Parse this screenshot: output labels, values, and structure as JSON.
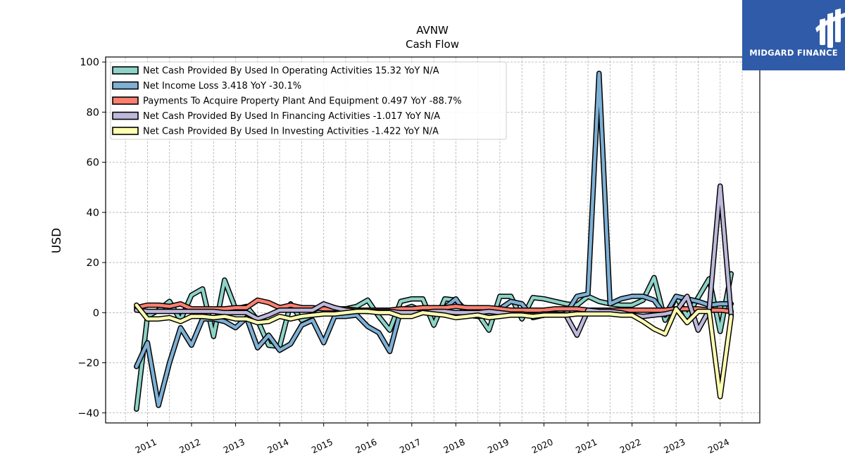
{
  "brand": {
    "name": "MIDGARD FINANCE",
    "logo_icon": "stylized-M-bars-icon",
    "color": "#2f5ba8"
  },
  "chart_data": {
    "type": "line",
    "title": "AVNW",
    "subtitle": "Cash Flow",
    "xlabel": "",
    "ylabel": "USD",
    "ylim": [
      -44,
      102
    ],
    "xlim": [
      2010.05,
      2024.9
    ],
    "yticks": [
      -40,
      -20,
      0,
      20,
      40,
      60,
      80,
      100
    ],
    "xticks": [
      "2011",
      "2012",
      "2013",
      "2014",
      "2015",
      "2016",
      "2017",
      "2018",
      "2019",
      "2020",
      "2021",
      "2022",
      "2023",
      "2024"
    ],
    "grid": true,
    "legend_position": "top-left",
    "series": [
      {
        "name": "Net Cash Provided By Used In Operating Activities  15.32 YoY N/A",
        "color": "#8dd3c7",
        "x": [
          2010.75,
          2011.0,
          2011.25,
          2011.5,
          2011.75,
          2012.0,
          2012.25,
          2012.5,
          2012.75,
          2013.0,
          2013.25,
          2013.5,
          2013.75,
          2014.0,
          2014.25,
          2014.5,
          2014.75,
          2015.0,
          2015.25,
          2015.5,
          2015.75,
          2016.0,
          2016.25,
          2016.5,
          2016.75,
          2017.0,
          2017.25,
          2017.5,
          2017.75,
          2018.0,
          2018.25,
          2018.5,
          2018.75,
          2019.0,
          2019.25,
          2019.5,
          2019.75,
          2020.0,
          2020.25,
          2020.5,
          2020.75,
          2021.0,
          2021.25,
          2021.5,
          2021.75,
          2022.0,
          2022.25,
          2022.5,
          2022.75,
          2023.0,
          2023.25,
          2023.5,
          2023.75,
          2024.0,
          2024.25
        ],
        "values": [
          -38.5,
          -1.5,
          1.0,
          4.5,
          -3.0,
          7.0,
          9.5,
          -9.5,
          13.0,
          1.5,
          2.5,
          -3.0,
          -13.0,
          -13.5,
          3.5,
          -3.0,
          -1.0,
          1.0,
          -1.0,
          1.5,
          2.5,
          5.0,
          -1.5,
          -7.0,
          4.5,
          5.5,
          5.5,
          -5.0,
          5.5,
          5.0,
          0.5,
          -0.5,
          -7.0,
          6.5,
          6.5,
          -2.5,
          6.0,
          5.5,
          4.5,
          3.5,
          3.0,
          6.5,
          4.5,
          3.5,
          3.0,
          3.0,
          5.0,
          14.0,
          -3.0,
          6.5,
          -1.5,
          6.0,
          13.5,
          -7.5,
          15.5
        ]
      },
      {
        "name": "Net Income Loss  3.418 YoY -30.1%",
        "color": "#7eb0d5",
        "x": [
          2010.75,
          2011.0,
          2011.25,
          2011.5,
          2011.75,
          2012.0,
          2012.25,
          2012.5,
          2012.75,
          2013.0,
          2013.25,
          2013.5,
          2013.75,
          2014.0,
          2014.25,
          2014.5,
          2014.75,
          2015.0,
          2015.25,
          2015.5,
          2015.75,
          2016.0,
          2016.25,
          2016.5,
          2016.75,
          2017.0,
          2017.25,
          2017.5,
          2017.75,
          2018.0,
          2018.25,
          2018.5,
          2018.75,
          2019.0,
          2019.25,
          2019.5,
          2019.75,
          2020.0,
          2020.25,
          2020.5,
          2020.75,
          2021.0,
          2021.25,
          2021.5,
          2021.75,
          2022.0,
          2022.25,
          2022.5,
          2022.75,
          2023.0,
          2023.25,
          2023.5,
          2023.75,
          2024.0,
          2024.25
        ],
        "values": [
          -21.5,
          -12.0,
          -37.0,
          -20.0,
          -6.0,
          -13.0,
          -2.5,
          -2.5,
          -3.5,
          -6.0,
          -2.0,
          -14.0,
          -9.0,
          -15.0,
          -12.5,
          -5.0,
          -3.0,
          -12.0,
          -1.5,
          -1.5,
          -1.0,
          -5.5,
          -8.0,
          -15.5,
          1.0,
          2.5,
          0.5,
          0.0,
          2.0,
          5.5,
          -1.0,
          -1.5,
          -1.0,
          1.5,
          4.5,
          3.5,
          -2.0,
          -1.0,
          -1.0,
          -0.5,
          6.5,
          7.5,
          95.5,
          3.5,
          5.5,
          6.5,
          6.5,
          5.0,
          -1.0,
          6.5,
          5.5,
          4.5,
          3.0,
          3.5,
          3.5
        ]
      },
      {
        "name": "Payments To Acquire Property Plant And Equipment  0.497 YoY -88.7%",
        "color": "#fd7f6f",
        "x": [
          2010.75,
          2011.0,
          2011.25,
          2011.5,
          2011.75,
          2012.0,
          2012.25,
          2012.5,
          2012.75,
          2013.0,
          2013.25,
          2013.5,
          2013.75,
          2014.0,
          2014.25,
          2014.5,
          2014.75,
          2015.0,
          2015.25,
          2015.5,
          2015.75,
          2016.0,
          2016.25,
          2016.5,
          2016.75,
          2017.0,
          2017.25,
          2017.5,
          2017.75,
          2018.0,
          2018.25,
          2018.5,
          2018.75,
          2019.0,
          2019.25,
          2019.5,
          2019.75,
          2020.0,
          2020.25,
          2020.5,
          2020.75,
          2021.0,
          2021.25,
          2021.5,
          2021.75,
          2022.0,
          2022.25,
          2022.5,
          2022.75,
          2023.0,
          2023.25,
          2023.5,
          2023.75,
          2024.0,
          2024.25
        ],
        "values": [
          2.0,
          3.0,
          3.0,
          2.5,
          3.5,
          1.5,
          1.5,
          1.5,
          1.5,
          2.0,
          2.0,
          5.0,
          4.0,
          2.0,
          3.0,
          2.0,
          2.0,
          1.5,
          1.5,
          1.5,
          1.0,
          1.0,
          1.0,
          1.0,
          1.5,
          1.5,
          2.0,
          2.0,
          2.0,
          2.5,
          2.0,
          2.0,
          2.0,
          1.5,
          1.0,
          1.0,
          1.0,
          1.0,
          1.5,
          1.5,
          1.5,
          1.0,
          1.0,
          1.0,
          1.0,
          1.0,
          1.0,
          1.0,
          1.0,
          1.5,
          1.5,
          1.5,
          1.0,
          1.0,
          0.5
        ]
      },
      {
        "name": "Net Cash Provided By Used In Financing Activities  -1.017 YoY N/A",
        "color": "#beb9db",
        "x": [
          2010.75,
          2011.0,
          2011.25,
          2011.5,
          2011.75,
          2012.0,
          2012.25,
          2012.5,
          2012.75,
          2013.0,
          2013.25,
          2013.5,
          2013.75,
          2014.0,
          2014.25,
          2014.5,
          2014.75,
          2015.0,
          2015.25,
          2015.5,
          2015.75,
          2016.0,
          2016.25,
          2016.5,
          2016.75,
          2017.0,
          2017.25,
          2017.5,
          2017.75,
          2018.0,
          2018.25,
          2018.5,
          2018.75,
          2019.0,
          2019.25,
          2019.5,
          2019.75,
          2020.0,
          2020.25,
          2020.5,
          2020.75,
          2021.0,
          2021.25,
          2021.5,
          2021.75,
          2022.0,
          2022.25,
          2022.5,
          2022.75,
          2023.0,
          2023.25,
          2023.5,
          2023.75,
          2024.0,
          2024.25
        ],
        "values": [
          1.0,
          0.5,
          0.5,
          0.5,
          0.5,
          0.5,
          0.5,
          0.5,
          0.0,
          0.0,
          0.0,
          -2.5,
          -1.0,
          1.0,
          1.0,
          1.0,
          1.0,
          3.5,
          2.0,
          1.0,
          0.5,
          0.5,
          0.5,
          0.5,
          0.0,
          0.0,
          0.0,
          0.5,
          0.5,
          0.0,
          0.0,
          0.0,
          0.5,
          0.0,
          -0.5,
          -0.5,
          -1.0,
          -0.5,
          -0.5,
          -1.0,
          -9.0,
          1.0,
          0.5,
          0.5,
          0.0,
          -1.0,
          -1.5,
          -1.0,
          -0.5,
          0.5,
          6.5,
          -7.0,
          1.0,
          50.5,
          -1.0
        ]
      },
      {
        "name": "Net Cash Provided By Used In Investing Activities  -1.422 YoY N/A",
        "color": "#ffffb3",
        "x": [
          2010.75,
          2011.0,
          2011.25,
          2011.5,
          2011.75,
          2012.0,
          2012.25,
          2012.5,
          2012.75,
          2013.0,
          2013.25,
          2013.5,
          2013.75,
          2014.0,
          2014.25,
          2014.5,
          2014.75,
          2015.0,
          2015.25,
          2015.5,
          2015.75,
          2016.0,
          2016.25,
          2016.5,
          2016.75,
          2017.0,
          2017.25,
          2017.5,
          2017.75,
          2018.0,
          2018.25,
          2018.5,
          2018.75,
          2019.0,
          2019.25,
          2019.5,
          2019.75,
          2020.0,
          2020.25,
          2020.5,
          2020.75,
          2021.0,
          2021.25,
          2021.5,
          2021.75,
          2022.0,
          2022.25,
          2022.5,
          2022.75,
          2023.0,
          2023.25,
          2023.5,
          2023.75,
          2024.0,
          2024.25
        ],
        "values": [
          3.0,
          -2.5,
          -2.5,
          -2.0,
          -3.5,
          -1.5,
          -1.5,
          -2.0,
          -1.5,
          -2.5,
          -2.5,
          -4.0,
          -3.5,
          -1.5,
          -2.5,
          -1.5,
          -1.0,
          -0.5,
          -0.5,
          0.0,
          0.5,
          0.5,
          0.0,
          0.0,
          -1.5,
          -1.5,
          0.0,
          -0.5,
          -1.0,
          -2.0,
          -1.5,
          -1.0,
          -2.0,
          -1.5,
          -1.0,
          -1.0,
          -1.5,
          -1.0,
          -1.0,
          -1.0,
          -0.5,
          -0.5,
          -0.5,
          -0.5,
          -1.0,
          -1.0,
          -3.5,
          -6.5,
          -8.5,
          1.5,
          -4.0,
          0.5,
          0.5,
          -33.5,
          -1.5
        ]
      }
    ]
  }
}
